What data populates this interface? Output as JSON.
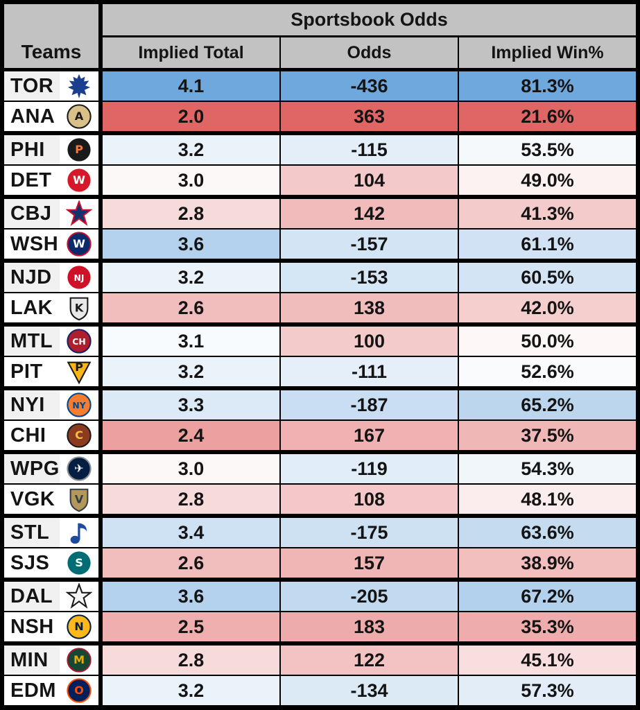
{
  "colors": {
    "header_bg": "#c2c2c2",
    "border": "#000000",
    "scale_max_blue": "#6fa8dc",
    "scale_mid_white": "#ffffff",
    "scale_max_red": "#e06666",
    "team_alt_bg": "#f1f1f1",
    "text": "#141414"
  },
  "chart_data": {
    "type": "table",
    "title": "Sportsbook Odds",
    "row_group_header": "Teams",
    "columns": [
      "Implied Total",
      "Odds",
      "Implied Win%"
    ],
    "layout": "20 team rows grouped into 10 game pairs; cells shaded red-to-blue by value",
    "rows": [
      {
        "team": "TOR",
        "implied_total": "4.1",
        "odds": "-436",
        "implied_win_pct": "81.3%",
        "cell_colors": {
          "total": "#6fa8dc",
          "odds": "#6fa8dc",
          "win": "#6fa8dc"
        },
        "logo": {
          "shape": "leaf",
          "bg": "#1b3e8f"
        }
      },
      {
        "team": "ANA",
        "implied_total": "2.0",
        "odds": "363",
        "implied_win_pct": "21.6%",
        "cell_colors": {
          "total": "#e06666",
          "odds": "#e06666",
          "win": "#e06666"
        },
        "logo": {
          "shape": "circle",
          "bg": "#d9c089",
          "stroke": "#1a1a1a",
          "fg": "#1a1a1a",
          "text": "A"
        }
      },
      {
        "team": "PHI",
        "implied_total": "3.2",
        "odds": "-115",
        "implied_win_pct": "53.5%",
        "cell_colors": {
          "total": "#eaf2fa",
          "odds": "#e3eef8",
          "win": "#f5f9fc"
        },
        "logo": {
          "shape": "circle",
          "bg": "#1a1a1a",
          "fg": "#f47a38",
          "text": "P"
        }
      },
      {
        "team": "DET",
        "implied_total": "3.0",
        "odds": "104",
        "implied_win_pct": "49.0%",
        "cell_colors": {
          "total": "#fdf8f8",
          "odds": "#f4c9c9",
          "win": "#fcf2f2"
        },
        "logo": {
          "shape": "circle",
          "bg": "#d7182a",
          "fg": "#ffffff",
          "text": "W"
        }
      },
      {
        "team": "CBJ",
        "implied_total": "2.8",
        "odds": "142",
        "implied_win_pct": "41.3%",
        "cell_colors": {
          "total": "#f7dbdb",
          "odds": "#f1bbbb",
          "win": "#f4cbcb"
        },
        "logo": {
          "shape": "star",
          "bg": "#13326e",
          "stroke": "#c8102e"
        }
      },
      {
        "team": "WSH",
        "implied_total": "3.6",
        "odds": "-157",
        "implied_win_pct": "61.1%",
        "cell_colors": {
          "total": "#b4d1ed",
          "odds": "#d3e5f4",
          "win": "#d0e2f3"
        },
        "logo": {
          "shape": "circle",
          "bg": "#0b2a6b",
          "stroke": "#c8102e",
          "fg": "#ffffff",
          "text": "W"
        }
      },
      {
        "team": "NJD",
        "implied_total": "3.2",
        "odds": "-153",
        "implied_win_pct": "60.5%",
        "cell_colors": {
          "total": "#eaf2fa",
          "odds": "#d5e6f5",
          "win": "#d3e4f4"
        },
        "logo": {
          "shape": "circle",
          "bg": "#ce1126",
          "fg": "#ffffff",
          "text": "NJ"
        }
      },
      {
        "team": "LAK",
        "implied_total": "2.6",
        "odds": "138",
        "implied_win_pct": "42.0%",
        "cell_colors": {
          "total": "#f2bdbd",
          "odds": "#f1bcbc",
          "win": "#f5cece"
        },
        "logo": {
          "shape": "shield",
          "bg": "#e8e8e8",
          "stroke": "#1a1a1a",
          "fg": "#1a1a1a",
          "text": "K"
        }
      },
      {
        "team": "MTL",
        "implied_total": "3.1",
        "odds": "100",
        "implied_win_pct": "50.0%",
        "cell_colors": {
          "total": "#f8fbfd",
          "odds": "#f4cbcb",
          "win": "#fdf7f7"
        },
        "logo": {
          "shape": "circle",
          "bg": "#af1e2d",
          "stroke": "#192168",
          "fg": "#ffffff",
          "text": "CH"
        }
      },
      {
        "team": "PIT",
        "implied_total": "3.2",
        "odds": "-111",
        "implied_win_pct": "52.6%",
        "cell_colors": {
          "total": "#eaf2fa",
          "odds": "#e4eff9",
          "win": "#f9fbfd"
        },
        "logo": {
          "shape": "triangle",
          "bg": "#fcb514",
          "stroke": "#1a1a1a",
          "fg": "#1a1a1a",
          "text": "P"
        }
      },
      {
        "team": "NYI",
        "implied_total": "3.3",
        "odds": "-187",
        "implied_win_pct": "65.2%",
        "cell_colors": {
          "total": "#dceaf7",
          "odds": "#c9def2",
          "win": "#bcd6ee"
        },
        "logo": {
          "shape": "circle",
          "bg": "#f47d30",
          "stroke": "#00468b",
          "fg": "#00468b",
          "text": "NY"
        }
      },
      {
        "team": "CHI",
        "implied_total": "2.4",
        "odds": "167",
        "implied_win_pct": "37.5%",
        "cell_colors": {
          "total": "#eca0a0",
          "odds": "#efb1b1",
          "win": "#f0b7b7"
        },
        "logo": {
          "shape": "circle",
          "bg": "#8c3b21",
          "stroke": "#1a1a1a",
          "fg": "#f3c13d",
          "text": "C"
        }
      },
      {
        "team": "WPG",
        "implied_total": "3.0",
        "odds": "-119",
        "implied_win_pct": "54.3%",
        "cell_colors": {
          "total": "#fdf8f8",
          "odds": "#e1edf8",
          "win": "#f1f6fb"
        },
        "logo": {
          "shape": "circle",
          "bg": "#041e42",
          "stroke": "#8e9090",
          "fg": "#ffffff",
          "text": "✈"
        }
      },
      {
        "team": "VGK",
        "implied_total": "2.8",
        "odds": "108",
        "implied_win_pct": "48.1%",
        "cell_colors": {
          "total": "#f7dbdb",
          "odds": "#f4c8c8",
          "win": "#fbeded"
        },
        "logo": {
          "shape": "shield",
          "bg": "#b4975a",
          "stroke": "#333f48",
          "fg": "#333f48",
          "text": "V"
        }
      },
      {
        "team": "STL",
        "implied_total": "3.4",
        "odds": "-175",
        "implied_win_pct": "63.6%",
        "cell_colors": {
          "total": "#cfe2f3",
          "odds": "#cde1f3",
          "win": "#c4dbf0"
        },
        "logo": {
          "shape": "note",
          "bg": "#1e4b9e"
        }
      },
      {
        "team": "SJS",
        "implied_total": "2.6",
        "odds": "157",
        "implied_win_pct": "38.9%",
        "cell_colors": {
          "total": "#f2bdbd",
          "odds": "#f0b5b5",
          "win": "#f2bebe"
        },
        "logo": {
          "shape": "circle",
          "bg": "#006d75",
          "fg": "#ffffff",
          "text": "S"
        }
      },
      {
        "team": "DAL",
        "implied_total": "3.6",
        "odds": "-205",
        "implied_win_pct": "67.2%",
        "cell_colors": {
          "total": "#b4d1ed",
          "odds": "#c2daf0",
          "win": "#b3d1ec"
        },
        "logo": {
          "shape": "star",
          "bg": "#f5f5f5",
          "stroke": "#1a1a1a"
        }
      },
      {
        "team": "NSH",
        "implied_total": "2.5",
        "odds": "183",
        "implied_win_pct": "35.3%",
        "cell_colors": {
          "total": "#efafaf",
          "odds": "#eeabab",
          "win": "#eeacac"
        },
        "logo": {
          "shape": "circle",
          "bg": "#ffb81c",
          "stroke": "#041e42",
          "fg": "#041e42",
          "text": "N"
        }
      },
      {
        "team": "MIN",
        "implied_total": "2.8",
        "odds": "122",
        "implied_win_pct": "45.1%",
        "cell_colors": {
          "total": "#f7dbdb",
          "odds": "#f3c2c2",
          "win": "#f8dede"
        },
        "logo": {
          "shape": "circle",
          "bg": "#154734",
          "stroke": "#a6192e",
          "fg": "#eaaa00",
          "text": "M"
        }
      },
      {
        "team": "EDM",
        "implied_total": "3.2",
        "odds": "-134",
        "implied_win_pct": "57.3%",
        "cell_colors": {
          "total": "#eaf2fa",
          "odds": "#dceaf6",
          "win": "#e2edf8"
        },
        "logo": {
          "shape": "circle",
          "bg": "#00205b",
          "stroke": "#fc4c02",
          "fg": "#fc4c02",
          "text": "O"
        }
      }
    ]
  }
}
